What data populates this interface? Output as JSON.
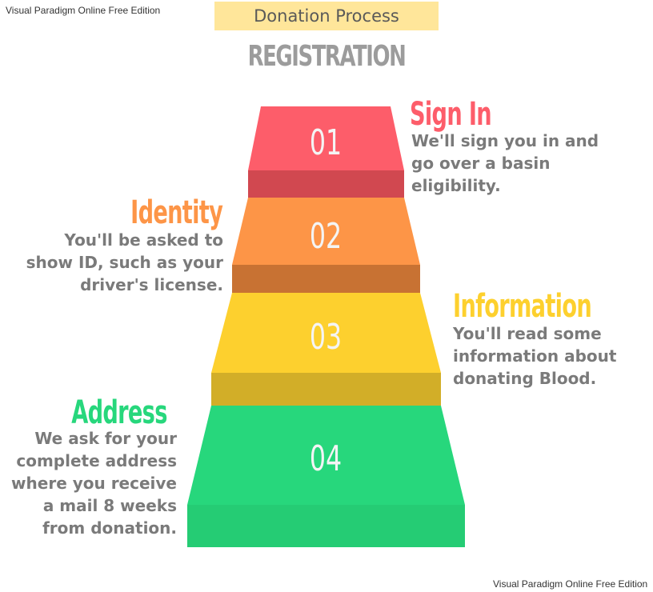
{
  "watermark": "Visual Paradigm Online Free Edition",
  "title": "Donation Process",
  "subtitle": "REGISTRATION",
  "steps": [
    {
      "number": "01",
      "heading": "Sign In",
      "color": "#fd5d6a",
      "lines": [
        "We'll sign you in and",
        "go over a basin",
        "eligibility."
      ]
    },
    {
      "number": "02",
      "heading": "Identity",
      "color": "#fd9547",
      "lines": [
        "You'll be asked to",
        "show ID, such as your",
        "driver's license."
      ]
    },
    {
      "number": "03",
      "heading": "Information",
      "color": "#fdd02e",
      "lines": [
        "You'll read some",
        "information about",
        "donating Blood."
      ]
    },
    {
      "number": "04",
      "heading": "Address",
      "color": "#27d77c",
      "lines": [
        "We ask for your",
        "complete address",
        "where you receive",
        "a mail 8 weeks",
        "from donation."
      ]
    }
  ]
}
